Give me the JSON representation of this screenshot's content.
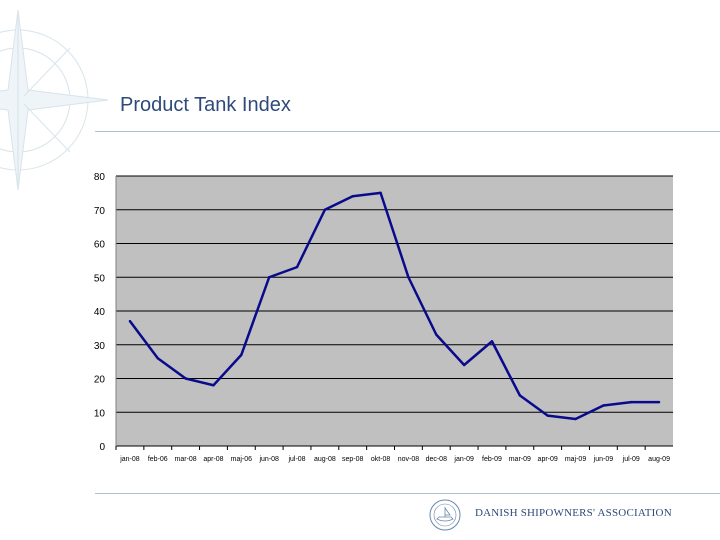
{
  "slide": {
    "title": "Product Tank Index",
    "footer": "DANISH SHIPOWNERS' ASSOCIATION",
    "colors": {
      "title": "#2e4a7a",
      "plot_bg": "#c0c0c0",
      "line": "#0a0a8c",
      "rule": "#a9c3d3"
    }
  },
  "chart_data": {
    "type": "line",
    "title": "",
    "xlabel": "",
    "ylabel": "",
    "ylim": [
      0,
      80
    ],
    "yticks": [
      0,
      10,
      20,
      30,
      40,
      50,
      60,
      70,
      80
    ],
    "grid": true,
    "categories": [
      "jan-08",
      "feb-06",
      "mar-08",
      "apr-08",
      "maj-06",
      "jun-08",
      "jul-08",
      "aug-08",
      "sep-08",
      "okt-08",
      "nov-08",
      "dec-08",
      "jan-09",
      "feb-09",
      "mar-09",
      "apr-09",
      "maj-09",
      "jun-09",
      "jul-09",
      "aug-09"
    ],
    "series": [
      {
        "name": "Product Tank Index",
        "values": [
          37,
          26,
          20,
          18,
          27,
          50,
          53,
          70,
          74,
          75,
          50,
          33,
          24,
          31,
          15,
          9,
          8,
          12,
          13,
          13
        ]
      }
    ]
  }
}
